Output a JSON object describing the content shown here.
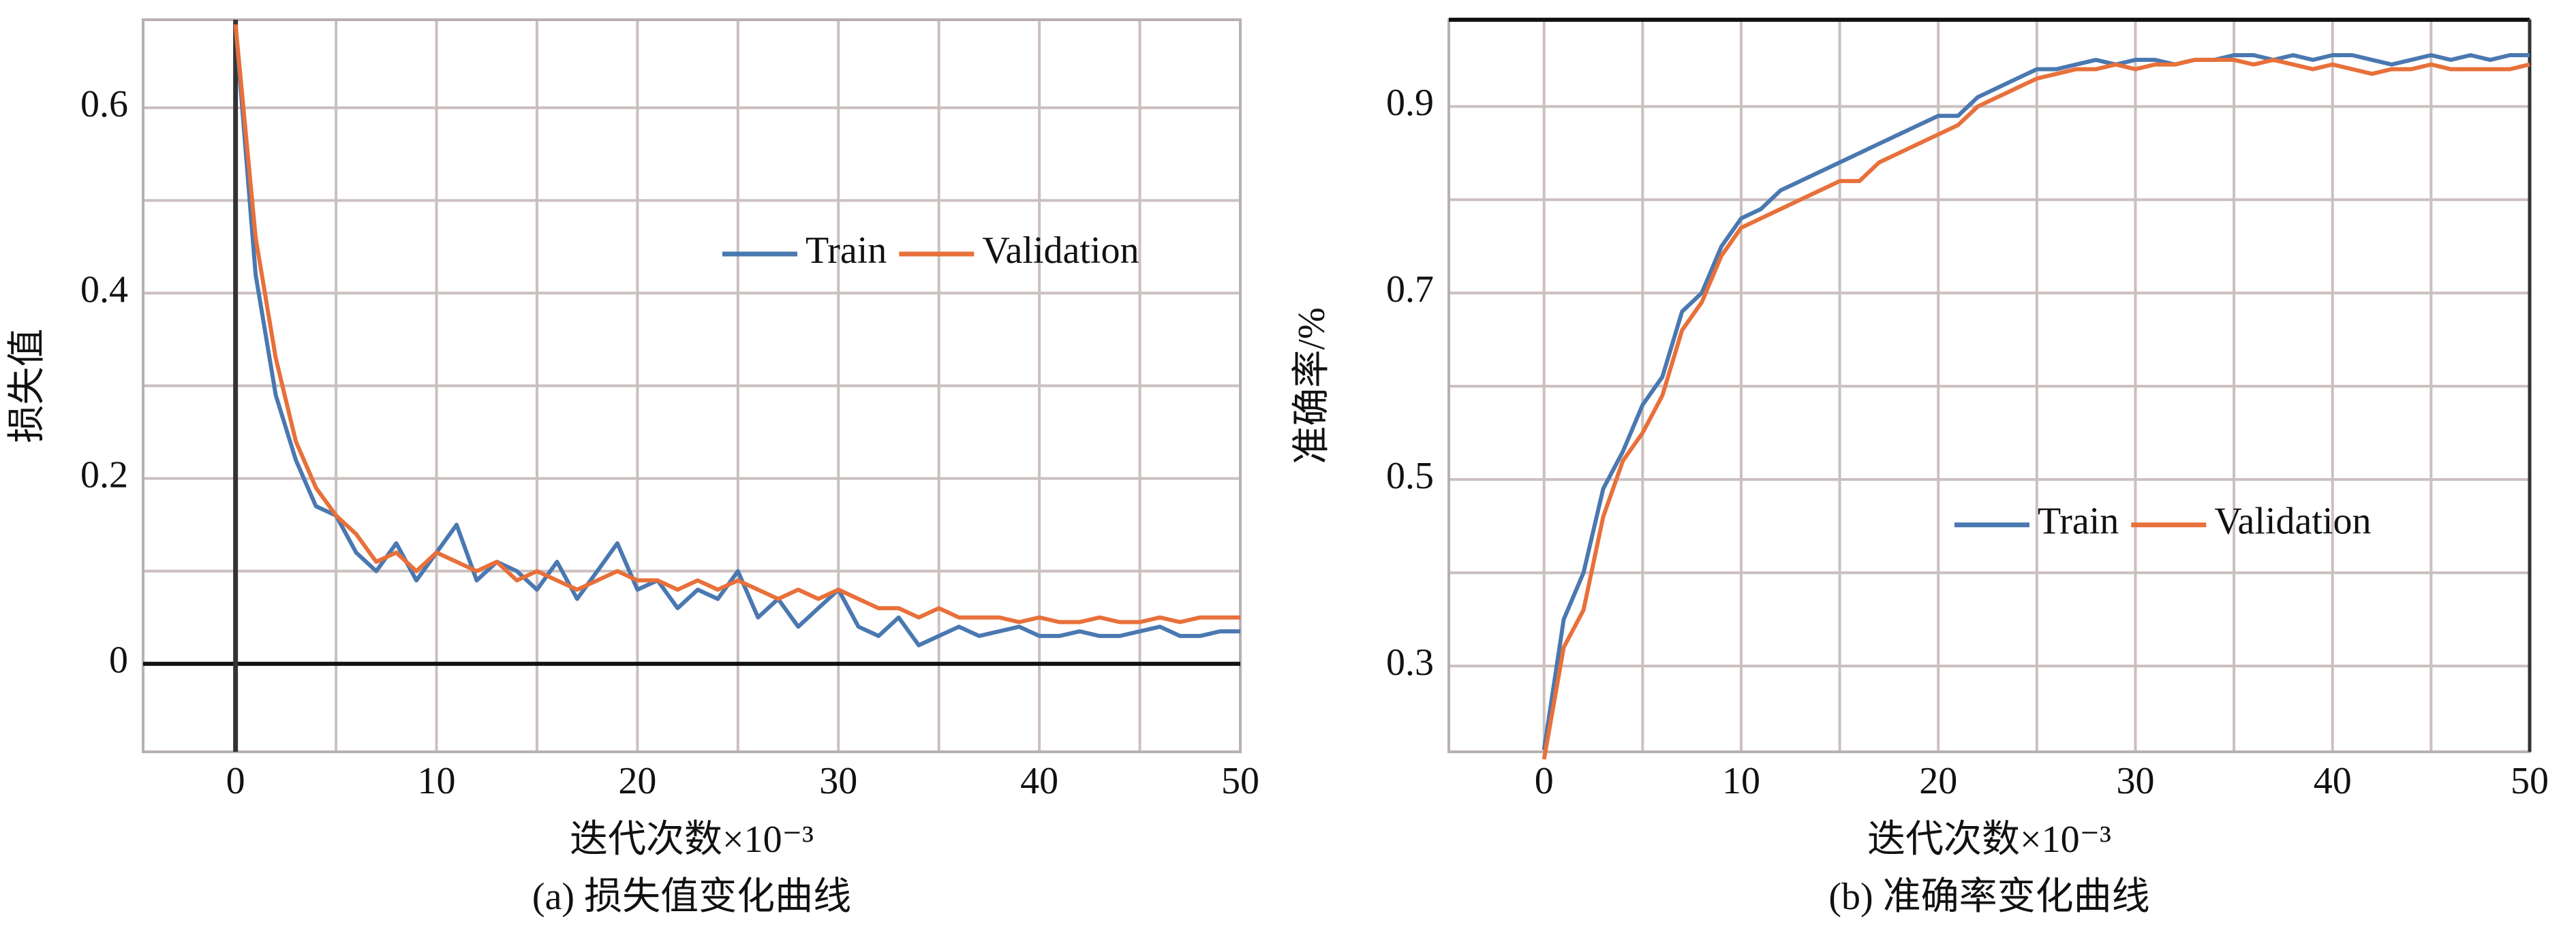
{
  "chart_data": [
    {
      "type": "line",
      "caption": "(a) 损失值变化曲线",
      "xlabel": "迭代次数×10⁻³",
      "ylabel": "损失值",
      "xlim": [
        -4.6,
        50
      ],
      "ylim": [
        -0.095,
        0.695
      ],
      "xticks": [
        0,
        10,
        20,
        30,
        40,
        50
      ],
      "yticks": [
        0,
        0.2,
        0.4,
        0.6
      ],
      "xminor": [
        5,
        15,
        25,
        35,
        45
      ],
      "yminor": [
        0.1,
        0.3,
        0.5
      ],
      "grid": true,
      "zero_lines": true,
      "legend": "upper right",
      "x": [
        0,
        1,
        2,
        3,
        4,
        5,
        6,
        7,
        8,
        9,
        10,
        11,
        12,
        13,
        14,
        15,
        16,
        17,
        18,
        19,
        20,
        21,
        22,
        23,
        24,
        25,
        26,
        27,
        28,
        29,
        30,
        31,
        32,
        33,
        34,
        35,
        36,
        37,
        38,
        39,
        40,
        41,
        42,
        43,
        44,
        45,
        46,
        47,
        48,
        49,
        50
      ],
      "series": [
        {
          "name": "Train",
          "color": "#4a78b0",
          "values": [
            0.69,
            0.42,
            0.29,
            0.22,
            0.17,
            0.16,
            0.12,
            0.1,
            0.13,
            0.09,
            0.12,
            0.15,
            0.09,
            0.11,
            0.1,
            0.08,
            0.11,
            0.07,
            0.1,
            0.13,
            0.08,
            0.09,
            0.06,
            0.08,
            0.07,
            0.1,
            0.05,
            0.07,
            0.04,
            0.06,
            0.08,
            0.04,
            0.03,
            0.05,
            0.02,
            0.03,
            0.04,
            0.03,
            0.035,
            0.04,
            0.03,
            0.03,
            0.035,
            0.03,
            0.03,
            0.035,
            0.04,
            0.03,
            0.03,
            0.035,
            0.035
          ]
        },
        {
          "name": "Validation",
          "color": "#e8703a",
          "values": [
            0.69,
            0.46,
            0.33,
            0.24,
            0.19,
            0.16,
            0.14,
            0.11,
            0.12,
            0.1,
            0.12,
            0.11,
            0.1,
            0.11,
            0.09,
            0.1,
            0.09,
            0.08,
            0.09,
            0.1,
            0.09,
            0.09,
            0.08,
            0.09,
            0.08,
            0.09,
            0.08,
            0.07,
            0.08,
            0.07,
            0.08,
            0.07,
            0.06,
            0.06,
            0.05,
            0.06,
            0.05,
            0.05,
            0.05,
            0.045,
            0.05,
            0.045,
            0.045,
            0.05,
            0.045,
            0.045,
            0.05,
            0.045,
            0.05,
            0.05,
            0.05
          ]
        }
      ]
    },
    {
      "type": "line",
      "caption": "(b) 准确率变化曲线",
      "xlabel": "迭代次数×10⁻³",
      "ylabel": "准确率/%",
      "xlim": [
        -4.83,
        50
      ],
      "ylim": [
        0.208,
        0.993
      ],
      "xticks": [
        0,
        10,
        20,
        30,
        40,
        50
      ],
      "yticks": [
        0.3,
        0.5,
        0.7,
        0.9
      ],
      "xminor": [
        5,
        15,
        25,
        35,
        45
      ],
      "yminor": [
        0.4,
        0.6,
        0.8
      ],
      "grid": true,
      "zero_lines": false,
      "legend": "lower right",
      "x": [
        0,
        1,
        2,
        3,
        4,
        5,
        6,
        7,
        8,
        9,
        10,
        11,
        12,
        13,
        14,
        15,
        16,
        17,
        18,
        19,
        20,
        21,
        22,
        23,
        24,
        25,
        26,
        27,
        28,
        29,
        30,
        31,
        32,
        33,
        34,
        35,
        36,
        37,
        38,
        39,
        40,
        41,
        42,
        43,
        44,
        45,
        46,
        47,
        48,
        49,
        50
      ],
      "series": [
        {
          "name": "Train",
          "color": "#4a78b0",
          "values": [
            0.21,
            0.35,
            0.4,
            0.49,
            0.53,
            0.58,
            0.61,
            0.68,
            0.7,
            0.75,
            0.78,
            0.79,
            0.81,
            0.82,
            0.83,
            0.84,
            0.85,
            0.86,
            0.87,
            0.88,
            0.89,
            0.89,
            0.91,
            0.92,
            0.93,
            0.94,
            0.94,
            0.945,
            0.95,
            0.945,
            0.95,
            0.95,
            0.945,
            0.95,
            0.95,
            0.955,
            0.955,
            0.95,
            0.955,
            0.95,
            0.955,
            0.955,
            0.95,
            0.945,
            0.95,
            0.955,
            0.95,
            0.955,
            0.95,
            0.955,
            0.955
          ]
        },
        {
          "name": "Validation",
          "color": "#e8703a",
          "values": [
            0.2,
            0.32,
            0.36,
            0.46,
            0.52,
            0.55,
            0.59,
            0.66,
            0.69,
            0.74,
            0.77,
            0.78,
            0.79,
            0.8,
            0.81,
            0.82,
            0.82,
            0.84,
            0.85,
            0.86,
            0.87,
            0.88,
            0.9,
            0.91,
            0.92,
            0.93,
            0.935,
            0.94,
            0.94,
            0.945,
            0.94,
            0.945,
            0.945,
            0.95,
            0.95,
            0.95,
            0.945,
            0.95,
            0.945,
            0.94,
            0.945,
            0.94,
            0.935,
            0.94,
            0.94,
            0.945,
            0.94,
            0.94,
            0.94,
            0.94,
            0.945
          ]
        }
      ]
    }
  ]
}
